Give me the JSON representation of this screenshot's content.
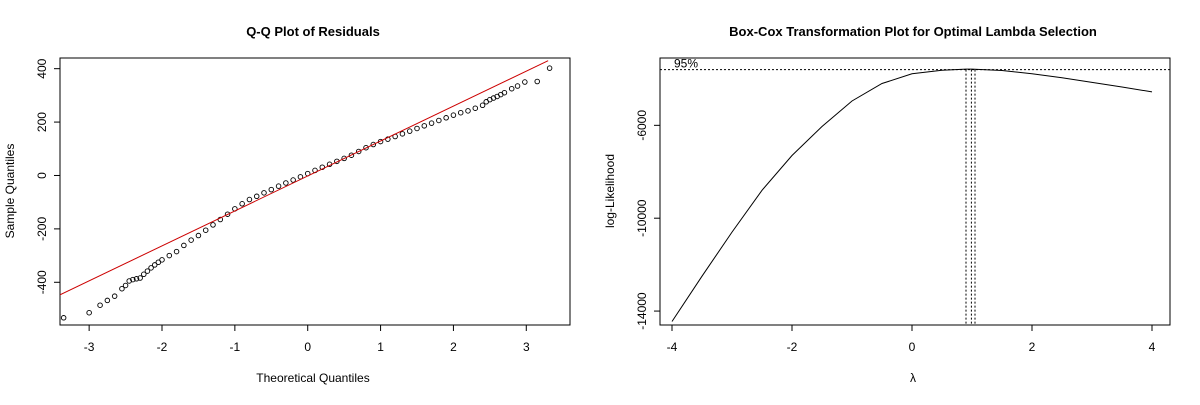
{
  "chart_data": [
    {
      "type": "scatter",
      "title": "Q-Q Plot of Residuals",
      "xlabel": "Theoretical Quantiles",
      "ylabel": "Sample Quantiles",
      "xlim": [
        -3.4,
        3.6
      ],
      "ylim": [
        -560,
        440
      ],
      "x_ticks": [
        "-3",
        "-2",
        "-1",
        "0",
        "1",
        "2",
        "3"
      ],
      "x_tick_values": [
        -3,
        -2,
        -1,
        0,
        1,
        2,
        3
      ],
      "y_ticks": [
        "-400",
        "-200",
        "0",
        "200",
        "400"
      ],
      "y_tick_values": [
        -400,
        -200,
        0,
        200,
        400
      ],
      "reference_line": {
        "color": "#cc0000",
        "points": [
          [
            -3.5,
            -460
          ],
          [
            3.3,
            430
          ]
        ]
      },
      "points": [
        [
          -3.35,
          -533
        ],
        [
          -3.0,
          -514
        ],
        [
          -2.85,
          -486
        ],
        [
          -2.75,
          -468
        ],
        [
          -2.65,
          -452
        ],
        [
          -2.55,
          -424
        ],
        [
          -2.5,
          -412
        ],
        [
          -2.45,
          -395
        ],
        [
          -2.4,
          -390
        ],
        [
          -2.35,
          -387
        ],
        [
          -2.3,
          -384
        ],
        [
          -2.25,
          -370
        ],
        [
          -2.2,
          -358
        ],
        [
          -2.15,
          -346
        ],
        [
          -2.1,
          -335
        ],
        [
          -2.05,
          -325
        ],
        [
          -2.0,
          -316
        ],
        [
          -1.9,
          -300
        ],
        [
          -1.8,
          -285
        ],
        [
          -1.7,
          -262
        ],
        [
          -1.6,
          -242
        ],
        [
          -1.5,
          -225
        ],
        [
          -1.4,
          -205
        ],
        [
          -1.3,
          -185
        ],
        [
          -1.2,
          -165
        ],
        [
          -1.1,
          -145
        ],
        [
          -1.0,
          -125
        ],
        [
          -0.9,
          -106
        ],
        [
          -0.8,
          -90
        ],
        [
          -0.7,
          -78
        ],
        [
          -0.6,
          -65
        ],
        [
          -0.5,
          -53
        ],
        [
          -0.4,
          -40
        ],
        [
          -0.3,
          -28
        ],
        [
          -0.2,
          -17
        ],
        [
          -0.1,
          -5
        ],
        [
          0.0,
          7
        ],
        [
          0.1,
          19
        ],
        [
          0.2,
          31
        ],
        [
          0.3,
          42
        ],
        [
          0.4,
          53
        ],
        [
          0.5,
          64
        ],
        [
          0.6,
          76
        ],
        [
          0.7,
          90
        ],
        [
          0.8,
          104
        ],
        [
          0.9,
          116
        ],
        [
          1.0,
          127
        ],
        [
          1.1,
          136
        ],
        [
          1.2,
          146
        ],
        [
          1.3,
          156
        ],
        [
          1.4,
          166
        ],
        [
          1.5,
          176
        ],
        [
          1.6,
          186
        ],
        [
          1.7,
          196
        ],
        [
          1.8,
          206
        ],
        [
          1.9,
          216
        ],
        [
          2.0,
          226
        ],
        [
          2.1,
          235
        ],
        [
          2.2,
          242
        ],
        [
          2.3,
          252
        ],
        [
          2.4,
          263
        ],
        [
          2.45,
          276
        ],
        [
          2.5,
          284
        ],
        [
          2.55,
          290
        ],
        [
          2.6,
          296
        ],
        [
          2.65,
          303
        ],
        [
          2.7,
          310
        ],
        [
          2.8,
          325
        ],
        [
          2.88,
          335
        ],
        [
          2.98,
          350
        ],
        [
          3.15,
          352
        ],
        [
          3.32,
          402
        ]
      ]
    },
    {
      "type": "line",
      "title": "Box-Cox Transformation Plot for Optimal Lambda Selection",
      "xlabel": "λ",
      "ylabel": "log-Likelihood",
      "xlim": [
        -4.2,
        4.3
      ],
      "ylim": [
        -14600,
        -3100
      ],
      "x_ticks": [
        "-4",
        "-2",
        "0",
        "2",
        "4"
      ],
      "x_tick_values": [
        -4,
        -2,
        0,
        2,
        4
      ],
      "y_ticks": [
        "-6000",
        "-10000",
        "-14000"
      ],
      "y_tick_values": [
        -6000,
        -10000,
        -14000
      ],
      "ci_label": "95%",
      "ci_level": -3600,
      "lambda_lines": [
        0.9,
        0.99,
        1.05
      ],
      "curve": [
        [
          -4.0,
          -14450
        ],
        [
          -3.5,
          -12500
        ],
        [
          -3.0,
          -10600
        ],
        [
          -2.5,
          -8800
        ],
        [
          -2.0,
          -7300
        ],
        [
          -1.5,
          -6050
        ],
        [
          -1.0,
          -4950
        ],
        [
          -0.5,
          -4200
        ],
        [
          0.0,
          -3780
        ],
        [
          0.5,
          -3630
        ],
        [
          0.9,
          -3580
        ],
        [
          1.0,
          -3580
        ],
        [
          1.5,
          -3640
        ],
        [
          2.0,
          -3780
        ],
        [
          2.5,
          -3950
        ],
        [
          3.0,
          -4150
        ],
        [
          3.5,
          -4350
        ],
        [
          4.0,
          -4560
        ]
      ]
    }
  ]
}
